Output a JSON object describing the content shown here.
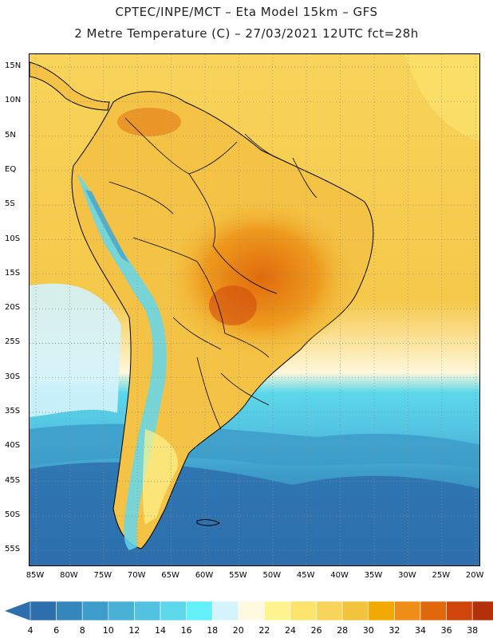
{
  "header": {
    "line1": "CPTEC/INPE/MCT –  Eta Model 15km – GFS",
    "line2": "2 Metre Temperature (C) – 27/03/2021 12UTC fct=28h"
  },
  "axes": {
    "y_labels": [
      "15N",
      "10N",
      "5N",
      "EQ",
      "5S",
      "10S",
      "15S",
      "20S",
      "25S",
      "30S",
      "35S",
      "40S",
      "45S",
      "50S",
      "55S"
    ],
    "x_labels": [
      "85W",
      "80W",
      "75W",
      "70W",
      "65W",
      "60W",
      "55W",
      "50W",
      "45W",
      "40W",
      "35W",
      "30W",
      "25W",
      "20W"
    ]
  },
  "colorbar": {
    "labels": [
      "4",
      "6",
      "8",
      "10",
      "12",
      "14",
      "16",
      "18",
      "20",
      "22",
      "24",
      "26",
      "28",
      "30",
      "32",
      "34",
      "36",
      "38"
    ],
    "colors": [
      "#2d6fad",
      "#3586bd",
      "#3d9cc9",
      "#49b0d6",
      "#52c2e0",
      "#5cd8ea",
      "#63f0f8",
      "#d4f3fc",
      "#fff9e2",
      "#fff48f",
      "#fbe36c",
      "#f8d45a",
      "#f2c33d",
      "#f2a902",
      "#ee8d17",
      "#e2690b",
      "#cf450b",
      "#b3300b"
    ]
  },
  "palette": {
    "land_hot": "#ef9a23",
    "land_warm": "#f4c245",
    "ocean_warm": "#f8d45a",
    "ocean_cold": "#3f86c2",
    "andes_cold": "#63d7ee",
    "border": "#000000"
  }
}
